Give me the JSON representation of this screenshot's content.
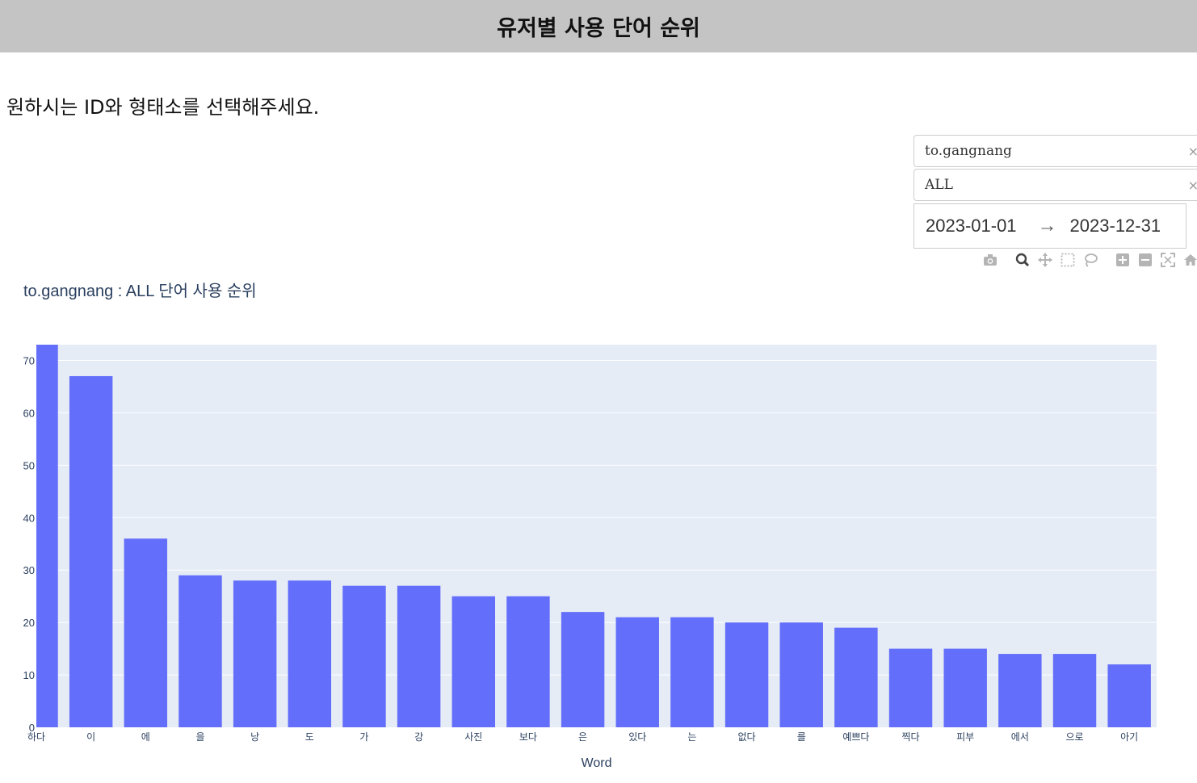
{
  "header": {
    "title": "유저별 사용 단어 순위"
  },
  "instruction": "원하시는 ID와 형태소를 선택해주세요.",
  "controls": {
    "user_dropdown": {
      "value": "to.gangnang",
      "clear_icon": "×"
    },
    "morph_dropdown": {
      "value": "ALL",
      "clear_icon": "×"
    },
    "date_range": {
      "start": "2023-01-01",
      "arrow": "→",
      "end": "2023-12-31"
    }
  },
  "modebar": {
    "icons": [
      "camera-icon",
      "zoom-icon",
      "pan-icon",
      "box-select-icon",
      "lasso-select-icon",
      "zoom-in-icon",
      "zoom-out-icon",
      "autoscale-icon",
      "reset-axes-icon"
    ]
  },
  "chart_data": {
    "type": "bar",
    "title": "to.gangnang : ALL 단어 사용 순위",
    "xlabel": "Word",
    "ylabel": "",
    "categories": [
      "하다",
      "이",
      "에",
      "을",
      "낭",
      "도",
      "가",
      "강",
      "사진",
      "보다",
      "은",
      "있다",
      "는",
      "없다",
      "를",
      "예쁘다",
      "찍다",
      "피부",
      "에서",
      "으로",
      "아기"
    ],
    "values": [
      73,
      67,
      36,
      29,
      28,
      28,
      27,
      27,
      25,
      25,
      22,
      21,
      21,
      20,
      20,
      19,
      15,
      15,
      14,
      14,
      12
    ],
    "ylim": [
      0,
      73
    ],
    "yticks": [
      0,
      10,
      20,
      30,
      40,
      50,
      60,
      70
    ],
    "colors": {
      "bar": "#636efa",
      "plot_bg": "#e5ecf6",
      "grid": "#ffffff"
    },
    "grid": true
  }
}
